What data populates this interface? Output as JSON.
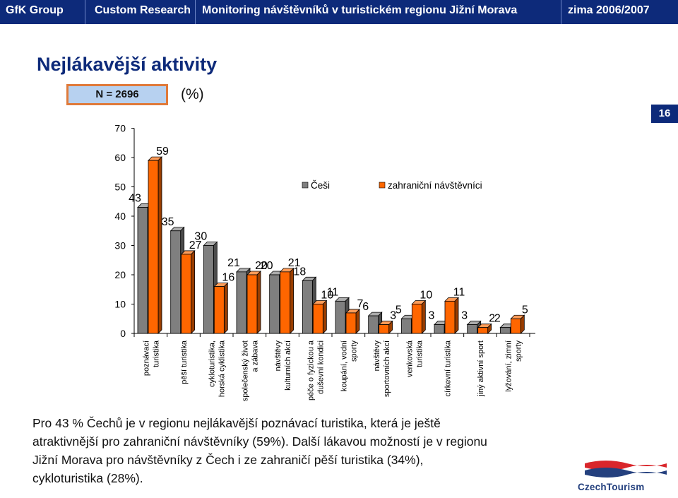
{
  "header": {
    "company": "GfK Group",
    "division": "Custom Research",
    "project": "Monitoring návštěvníků v turistickém regionu Jižní Morava",
    "season": "zima 2006/2007",
    "bar_color": "#0d2a7a"
  },
  "title": "Nejlákavější aktivity",
  "sample": "N = 2696",
  "unit": "(%)",
  "page_number": "16",
  "chart_data": {
    "type": "bar",
    "categories": [
      [
        "poznávací",
        "turistika"
      ],
      [
        "pěší turistika"
      ],
      [
        "cykloturistika,",
        "horská cyklistika"
      ],
      [
        "společenský život",
        "a zábava"
      ],
      [
        "návštěvy",
        "kulturních akcí"
      ],
      [
        "péče o fyzickou a",
        "duševní kondici"
      ],
      [
        "koupání, vodní",
        "sporty"
      ],
      [
        "návštěvy",
        "sportovních akcí"
      ],
      [
        "venkovská",
        "turistika"
      ],
      [
        "církevní turistika"
      ],
      [
        "jiný aktivní sport"
      ],
      [
        "lyžování, zimní",
        "sporty"
      ]
    ],
    "series": [
      {
        "name": "Češi",
        "color": "#7f7f7f",
        "values": [
          43,
          35,
          30,
          21,
          20,
          18,
          11,
          6,
          5,
          3,
          3,
          2
        ]
      },
      {
        "name": "zahraniční návštěvníci",
        "color": "#ff6600",
        "values": [
          59,
          27,
          16,
          20,
          21,
          10,
          7,
          3,
          10,
          11,
          2,
          5
        ]
      }
    ],
    "ylim": [
      0,
      70
    ],
    "yticks": [
      0,
      10,
      20,
      30,
      40,
      50,
      60,
      70
    ],
    "grid": false,
    "legend": "top-right"
  },
  "summary": [
    "Pro 43 % Čechů je v regionu nejlákavější poznávací turistika, která je ještě",
    "atraktivnější pro zahraniční návštěvníky (59%).  Další lákavou možností je v regionu",
    "Jižní Morava pro návštěvníky z Čech i ze zahraničí pěší turistika (34%),",
    "cykloturistika (28%)."
  ],
  "logo": {
    "text": "CzechTourism",
    "color": "#24407e",
    "accent": "#d9262b"
  }
}
